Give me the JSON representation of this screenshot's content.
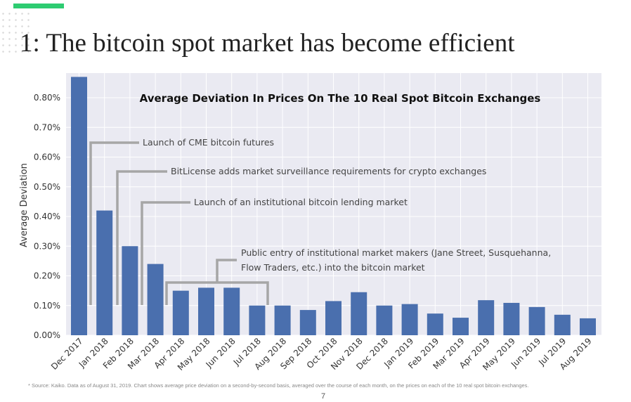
{
  "slide": {
    "title": "1: The bitcoin spot market has become efficient",
    "footnote": "* Source: Kaiko. Data as of August 31, 2019.  Chart shows average price deviation on a second-by-second basis, averaged over the course of each month, on the prices on each of the 10 real spot bitcoin exchanges.",
    "page_number": "7",
    "accent_color": "#2ecc71"
  },
  "chart_data": {
    "type": "bar",
    "title": "Average Deviation In Prices On The 10 Real Spot Bitcoin Exchanges",
    "xlabel": "",
    "ylabel": "Average Deviation",
    "ylim": [
      0,
      0.88
    ],
    "yticks": [
      "0.00%",
      "0.10%",
      "0.20%",
      "0.30%",
      "0.40%",
      "0.50%",
      "0.60%",
      "0.70%",
      "0.80%"
    ],
    "grid": true,
    "bar_color": "#4a6fae",
    "background_color": "#eaeaf2",
    "categories": [
      "Dec 2017",
      "Jan 2018",
      "Feb 2018",
      "Mar 2018",
      "Apr 2018",
      "May 2018",
      "Jun 2018",
      "Jul 2018",
      "Aug 2018",
      "Sep 2018",
      "Oct 2018",
      "Nov 2018",
      "Dec 2018",
      "Jan 2019",
      "Feb 2019",
      "Mar 2019",
      "Apr 2019",
      "May 2019",
      "Jun 2019",
      "Jul 2019",
      "Aug 2019"
    ],
    "values": [
      0.87,
      0.42,
      0.3,
      0.24,
      0.15,
      0.16,
      0.16,
      0.1,
      0.1,
      0.085,
      0.115,
      0.145,
      0.1,
      0.105,
      0.073,
      0.059,
      0.118,
      0.109,
      0.095,
      0.069,
      0.057
    ],
    "annotations": [
      {
        "text": "Launch of CME bitcoin futures",
        "category": "Jan 2018"
      },
      {
        "text": "BitLicense adds market surveillance requirements for crypto exchanges",
        "category": "Feb 2018"
      },
      {
        "text": "Launch of an institutional bitcoin lending market",
        "category": "Mar 2018"
      },
      {
        "text": "Public entry of institutional market makers (Jane Street, Susquehanna,",
        "text2": "Flow Traders, etc.) into the bitcoin market",
        "range": [
          "Apr 2018",
          "Jul 2018"
        ]
      }
    ]
  }
}
